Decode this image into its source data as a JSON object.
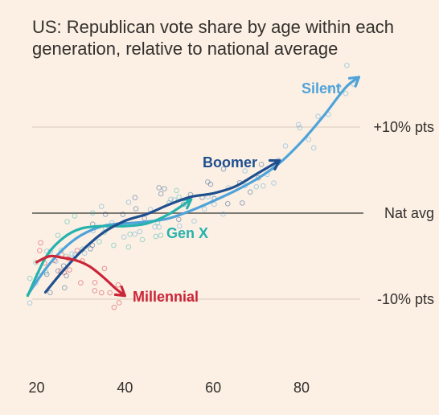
{
  "chart_data": {
    "type": "line",
    "title_lines": [
      "US: Republican vote share by age within each",
      "generation, relative to national average"
    ],
    "xlabel": "",
    "ylabel": "",
    "xlim": [
      18,
      98
    ],
    "ylim": [
      -15,
      16
    ],
    "x_ticks": [
      20,
      40,
      60,
      80
    ],
    "y_gridlines": [
      {
        "value": 10,
        "label": "+10% pts"
      },
      {
        "value": 0,
        "label": "Nat avg"
      },
      {
        "value": -10,
        "label": "-10% pts"
      }
    ],
    "series": [
      {
        "name": "Silent",
        "color": "#4fa3d9",
        "x": [
          18,
          22,
          26,
          30,
          35,
          40,
          45,
          50,
          55,
          60,
          65,
          70,
          75,
          80,
          85,
          90,
          93
        ],
        "y": [
          -9.5,
          -6.5,
          -4.2,
          -2.6,
          -1.5,
          -1.2,
          -1.0,
          -0.6,
          0.3,
          1.4,
          2.6,
          4.0,
          5.8,
          8.3,
          11.3,
          14.6,
          15.8
        ]
      },
      {
        "name": "Boomer",
        "color": "#1f4f8f",
        "x": [
          22,
          26,
          30,
          35,
          40,
          45,
          50,
          55,
          60,
          65,
          70,
          75
        ],
        "y": [
          -9.2,
          -6.7,
          -4.5,
          -2.3,
          -0.9,
          -0.1,
          1.0,
          1.9,
          2.3,
          3.1,
          4.6,
          6.1
        ]
      },
      {
        "name": "Gen X",
        "color": "#26b2ad",
        "x": [
          18,
          22,
          26,
          30,
          35,
          40,
          45,
          50,
          55
        ],
        "y": [
          -9.6,
          -5.2,
          -2.9,
          -1.8,
          -1.5,
          -1.5,
          -1.2,
          -0.1,
          1.6
        ]
      },
      {
        "name": "Millennial",
        "color": "#cc2438",
        "x": [
          20,
          23,
          26,
          29,
          32,
          35,
          38,
          40
        ],
        "y": [
          -5.7,
          -5.0,
          -5.2,
          -5.5,
          -6.2,
          -7.4,
          -8.8,
          -9.6
        ]
      }
    ],
    "colors": {
      "background": "#fcf0e4",
      "gridline": "#e3d6c8",
      "zero_line": "#7d7973",
      "text": "#33302e"
    }
  }
}
